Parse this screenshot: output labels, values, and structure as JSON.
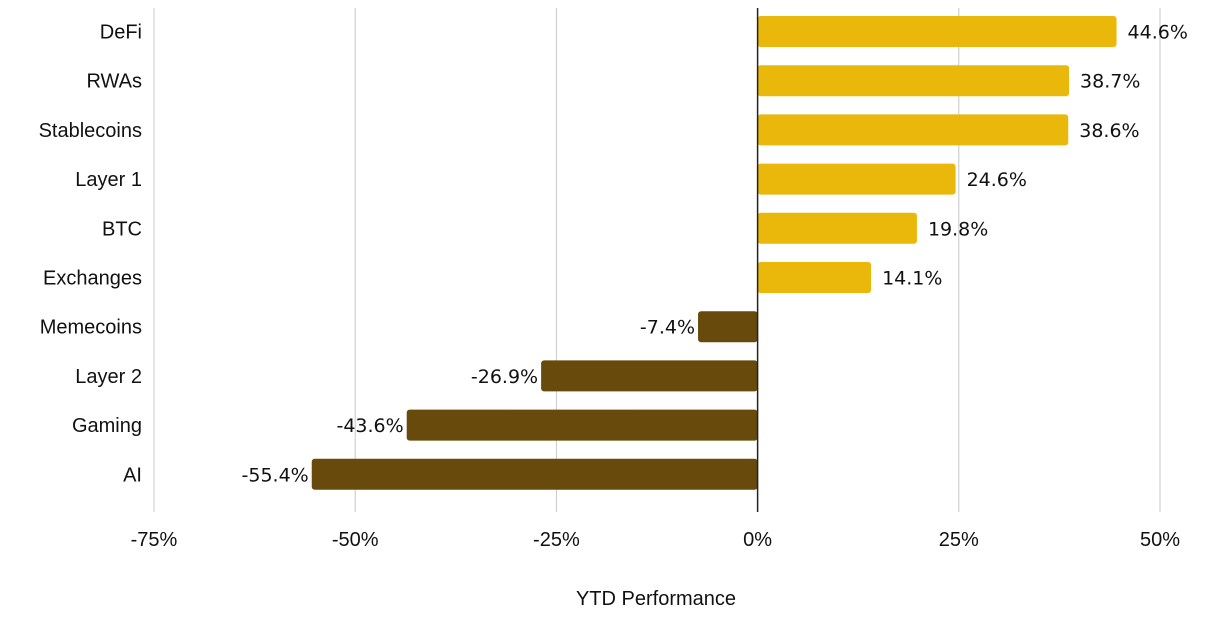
{
  "chart_data": {
    "type": "bar",
    "orientation": "horizontal",
    "categories": [
      "DeFi",
      "RWAs",
      "Stablecoins",
      "Layer 1",
      "BTC",
      "Exchanges",
      "Memecoins",
      "Layer 2",
      "Gaming",
      "AI"
    ],
    "values": [
      44.6,
      38.7,
      38.6,
      24.6,
      19.8,
      14.1,
      -7.4,
      -26.9,
      -43.6,
      -55.4
    ],
    "value_labels": [
      "44.6%",
      "38.7%",
      "38.6%",
      "24.6%",
      "19.8%",
      "14.1%",
      "-7.4%",
      "-26.9%",
      "-43.6%",
      "-55.4%"
    ],
    "title": "",
    "xlabel": "YTD Performance",
    "ylabel": "",
    "xlim": [
      -75,
      50
    ],
    "xticks": [
      -75,
      -50,
      -25,
      0,
      25,
      50
    ],
    "xtick_labels": [
      "-75%",
      "-50%",
      "-25%",
      "0%",
      "25%",
      "50%"
    ],
    "grid": "vertical",
    "legend": "none",
    "colors": {
      "positive": "#E9B80B",
      "negative": "#674A0C",
      "grid": "#C8C8C8",
      "zero_line": "#222222"
    }
  }
}
